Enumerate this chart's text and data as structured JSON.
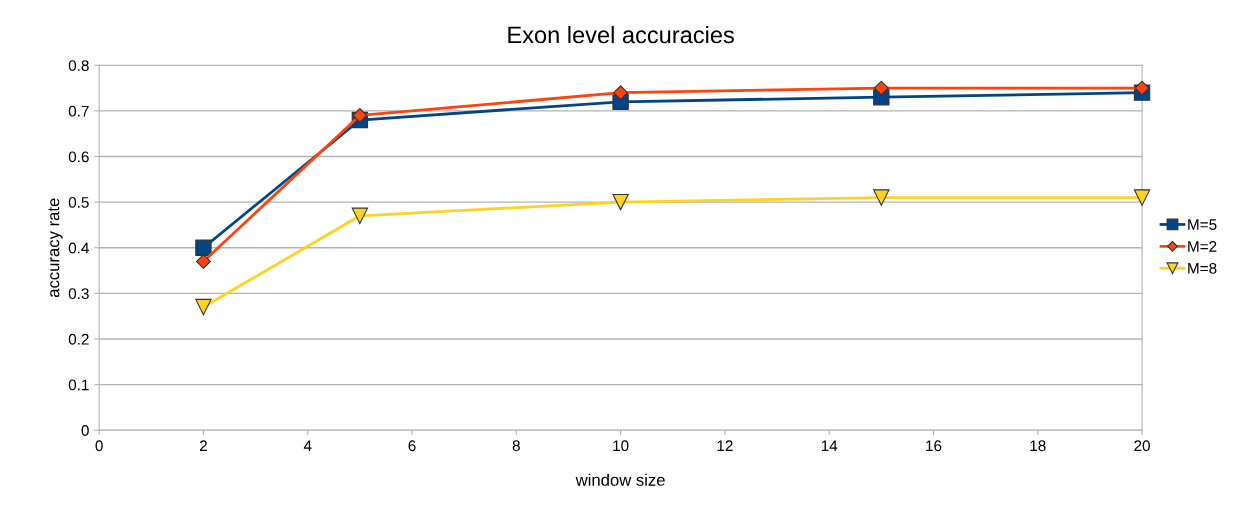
{
  "chart_data": {
    "type": "line",
    "title": "Exon level accuracies",
    "xlabel": "window size",
    "ylabel": "accuracy rate",
    "x": [
      2,
      5,
      10,
      15,
      20
    ],
    "series": [
      {
        "name": "M=5",
        "color": "#004586",
        "marker": "square",
        "values": [
          0.4,
          0.68,
          0.72,
          0.73,
          0.74
        ]
      },
      {
        "name": "M=2",
        "color": "#ff420e",
        "marker": "diamond",
        "values": [
          0.37,
          0.69,
          0.74,
          0.75,
          0.75
        ]
      },
      {
        "name": "M=8",
        "color": "#ffd320",
        "marker": "triangle",
        "values": [
          0.27,
          0.47,
          0.5,
          0.51,
          0.51
        ]
      }
    ],
    "xlim": [
      0,
      20
    ],
    "xticks": [
      0,
      2,
      4,
      6,
      8,
      10,
      12,
      14,
      16,
      18,
      20
    ],
    "ylim": [
      0,
      0.8
    ],
    "yticks": [
      0,
      0.1,
      0.2,
      0.3,
      0.4,
      0.5,
      0.6,
      0.7,
      0.8
    ],
    "grid": "y",
    "legend": "right",
    "line_style": "solid"
  }
}
